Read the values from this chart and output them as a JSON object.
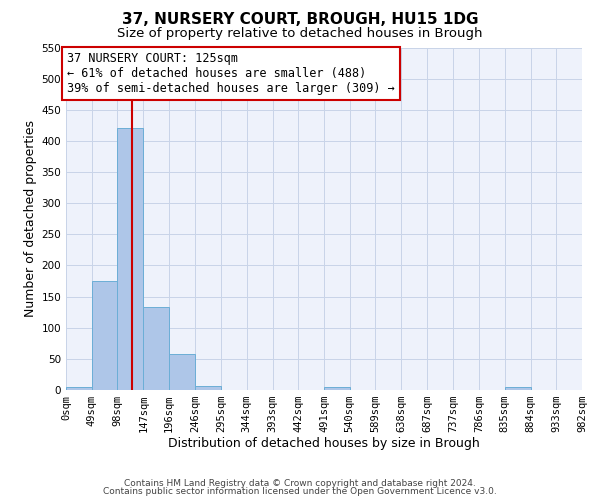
{
  "title": "37, NURSERY COURT, BROUGH, HU15 1DG",
  "subtitle": "Size of property relative to detached houses in Brough",
  "xlabel": "Distribution of detached houses by size in Brough",
  "ylabel": "Number of detached properties",
  "bin_edges": [
    0,
    49,
    98,
    147,
    196,
    246,
    295,
    344,
    393,
    442,
    491,
    540,
    589,
    638,
    687,
    737,
    786,
    835,
    884,
    933,
    982
  ],
  "bin_labels": [
    "0sqm",
    "49sqm",
    "98sqm",
    "147sqm",
    "196sqm",
    "246sqm",
    "295sqm",
    "344sqm",
    "393sqm",
    "442sqm",
    "491sqm",
    "540sqm",
    "589sqm",
    "638sqm",
    "687sqm",
    "737sqm",
    "786sqm",
    "835sqm",
    "884sqm",
    "933sqm",
    "982sqm"
  ],
  "counts": [
    5,
    175,
    420,
    133,
    58,
    7,
    0,
    0,
    0,
    0,
    5,
    0,
    0,
    0,
    0,
    0,
    0,
    5,
    0,
    0
  ],
  "bar_color": "#aec6e8",
  "bar_edge_color": "#6baed6",
  "property_size": 125,
  "vline_color": "#cc0000",
  "annotation_text": "37 NURSERY COURT: 125sqm\n← 61% of detached houses are smaller (488)\n39% of semi-detached houses are larger (309) →",
  "annotation_box_color": "#ffffff",
  "annotation_box_edge_color": "#cc0000",
  "ylim": [
    0,
    550
  ],
  "yticks": [
    0,
    50,
    100,
    150,
    200,
    250,
    300,
    350,
    400,
    450,
    500,
    550
  ],
  "footer_line1": "Contains HM Land Registry data © Crown copyright and database right 2024.",
  "footer_line2": "Contains public sector information licensed under the Open Government Licence v3.0.",
  "bg_color": "#eef2fb",
  "grid_color": "#c8d4e8",
  "title_fontsize": 11,
  "subtitle_fontsize": 9.5,
  "axis_label_fontsize": 9,
  "tick_fontsize": 7.5,
  "footer_fontsize": 6.5,
  "annotation_fontsize": 8.5
}
